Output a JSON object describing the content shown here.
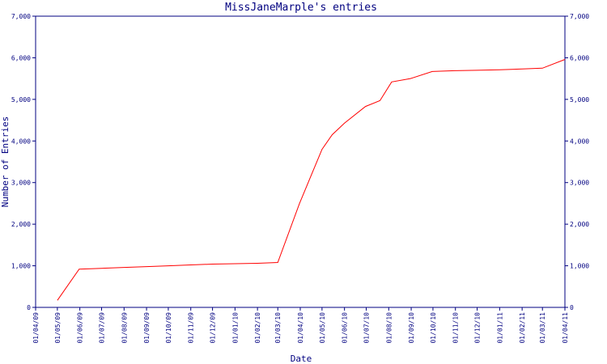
{
  "chart_data": {
    "type": "line",
    "title": "MissJaneMarple's entries",
    "xlabel": "Date",
    "ylabel": "Number of Entries",
    "ylim": [
      0,
      7000
    ],
    "y_ticks": [
      0,
      1000,
      2000,
      3000,
      4000,
      5000,
      6000,
      7000
    ],
    "y_tick_labels": [
      "0",
      "1,000",
      "2,000",
      "3,000",
      "4,000",
      "5,000",
      "6,000",
      "7,000"
    ],
    "x_tick_labels": [
      "01/04/09",
      "01/05/09",
      "01/06/09",
      "01/07/09",
      "01/08/09",
      "01/09/09",
      "01/10/09",
      "01/11/09",
      "01/12/09",
      "01/01/10",
      "01/02/10",
      "01/03/10",
      "01/04/10",
      "01/05/10",
      "01/06/10",
      "01/07/10",
      "01/08/10",
      "01/09/10",
      "01/10/10",
      "01/11/10",
      "01/12/10",
      "01/01/11",
      "01/02/11",
      "01/03/11",
      "01/04/11"
    ],
    "grid": false,
    "series": [
      {
        "color": "#ff0000",
        "x": [
          "2009-05-01",
          "2009-05-31",
          "2009-07-01",
          "2009-08-01",
          "2009-09-01",
          "2009-10-01",
          "2009-11-01",
          "2009-12-01",
          "2010-01-01",
          "2010-02-01",
          "2010-03-01",
          "2010-03-31",
          "2010-05-01",
          "2010-05-15",
          "2010-06-01",
          "2010-06-30",
          "2010-07-20",
          "2010-08-05",
          "2010-08-31",
          "2010-09-30",
          "2010-10-31",
          "2010-12-01",
          "2011-01-01",
          "2011-02-01",
          "2011-03-01",
          "2011-04-01"
        ],
        "y": [
          170,
          920,
          940,
          960,
          980,
          1000,
          1020,
          1040,
          1050,
          1060,
          1080,
          2500,
          3800,
          4150,
          4430,
          4830,
          4970,
          5420,
          5500,
          5670,
          5690,
          5700,
          5710,
          5730,
          5750,
          5960
        ]
      }
    ]
  }
}
